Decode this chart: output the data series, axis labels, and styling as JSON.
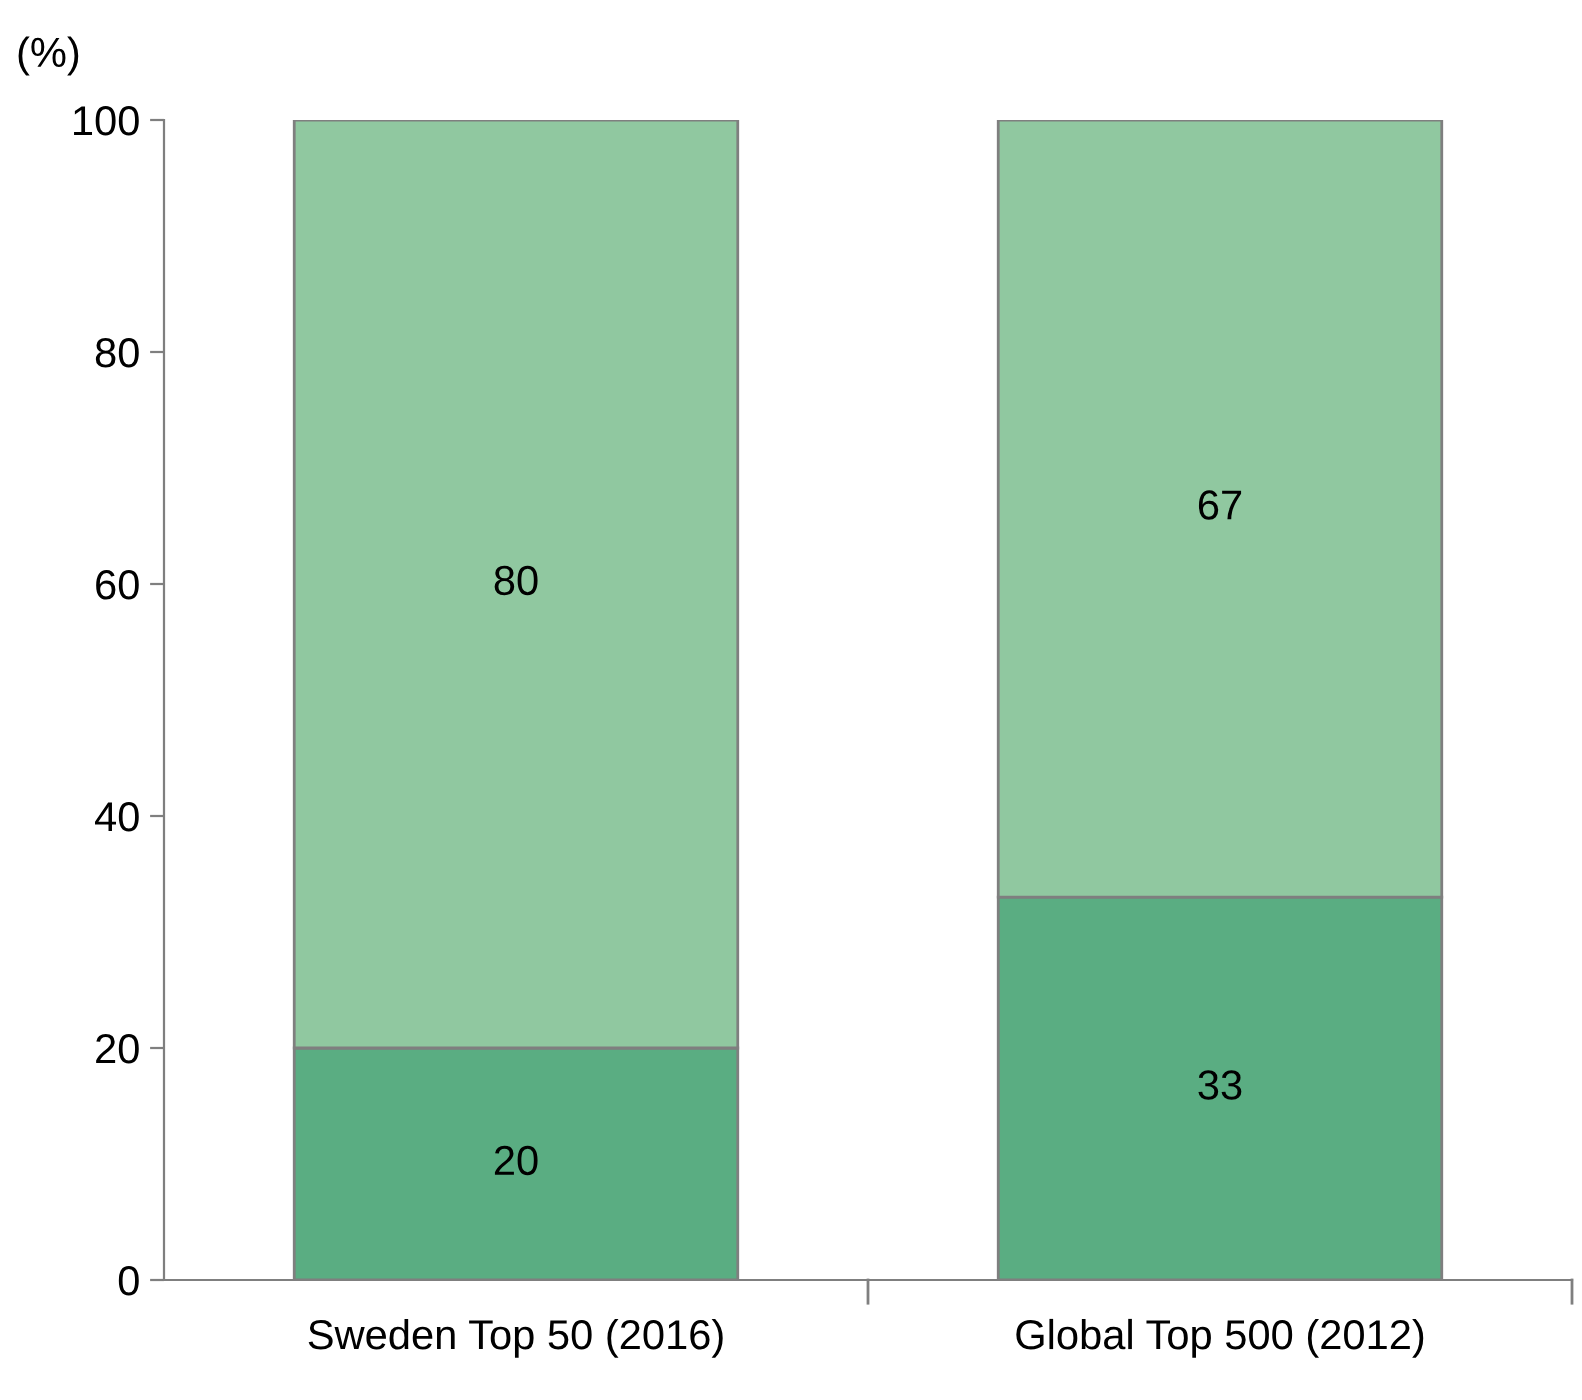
{
  "chart_data": {
    "type": "bar",
    "ylabel": "(%)",
    "categories": [
      "Sweden Top 50 (2016)",
      "Global Top 500 (2012)"
    ],
    "stacked": true,
    "series": [
      {
        "color": "#5aad82",
        "values": [
          20,
          33
        ]
      },
      {
        "color": "#90c8a0",
        "values": [
          80,
          67
        ]
      }
    ],
    "ylim": [
      0,
      100
    ],
    "yticks": [
      0,
      20,
      40,
      60,
      80,
      100
    ],
    "grid": false,
    "legend": false,
    "data_labels": true
  }
}
